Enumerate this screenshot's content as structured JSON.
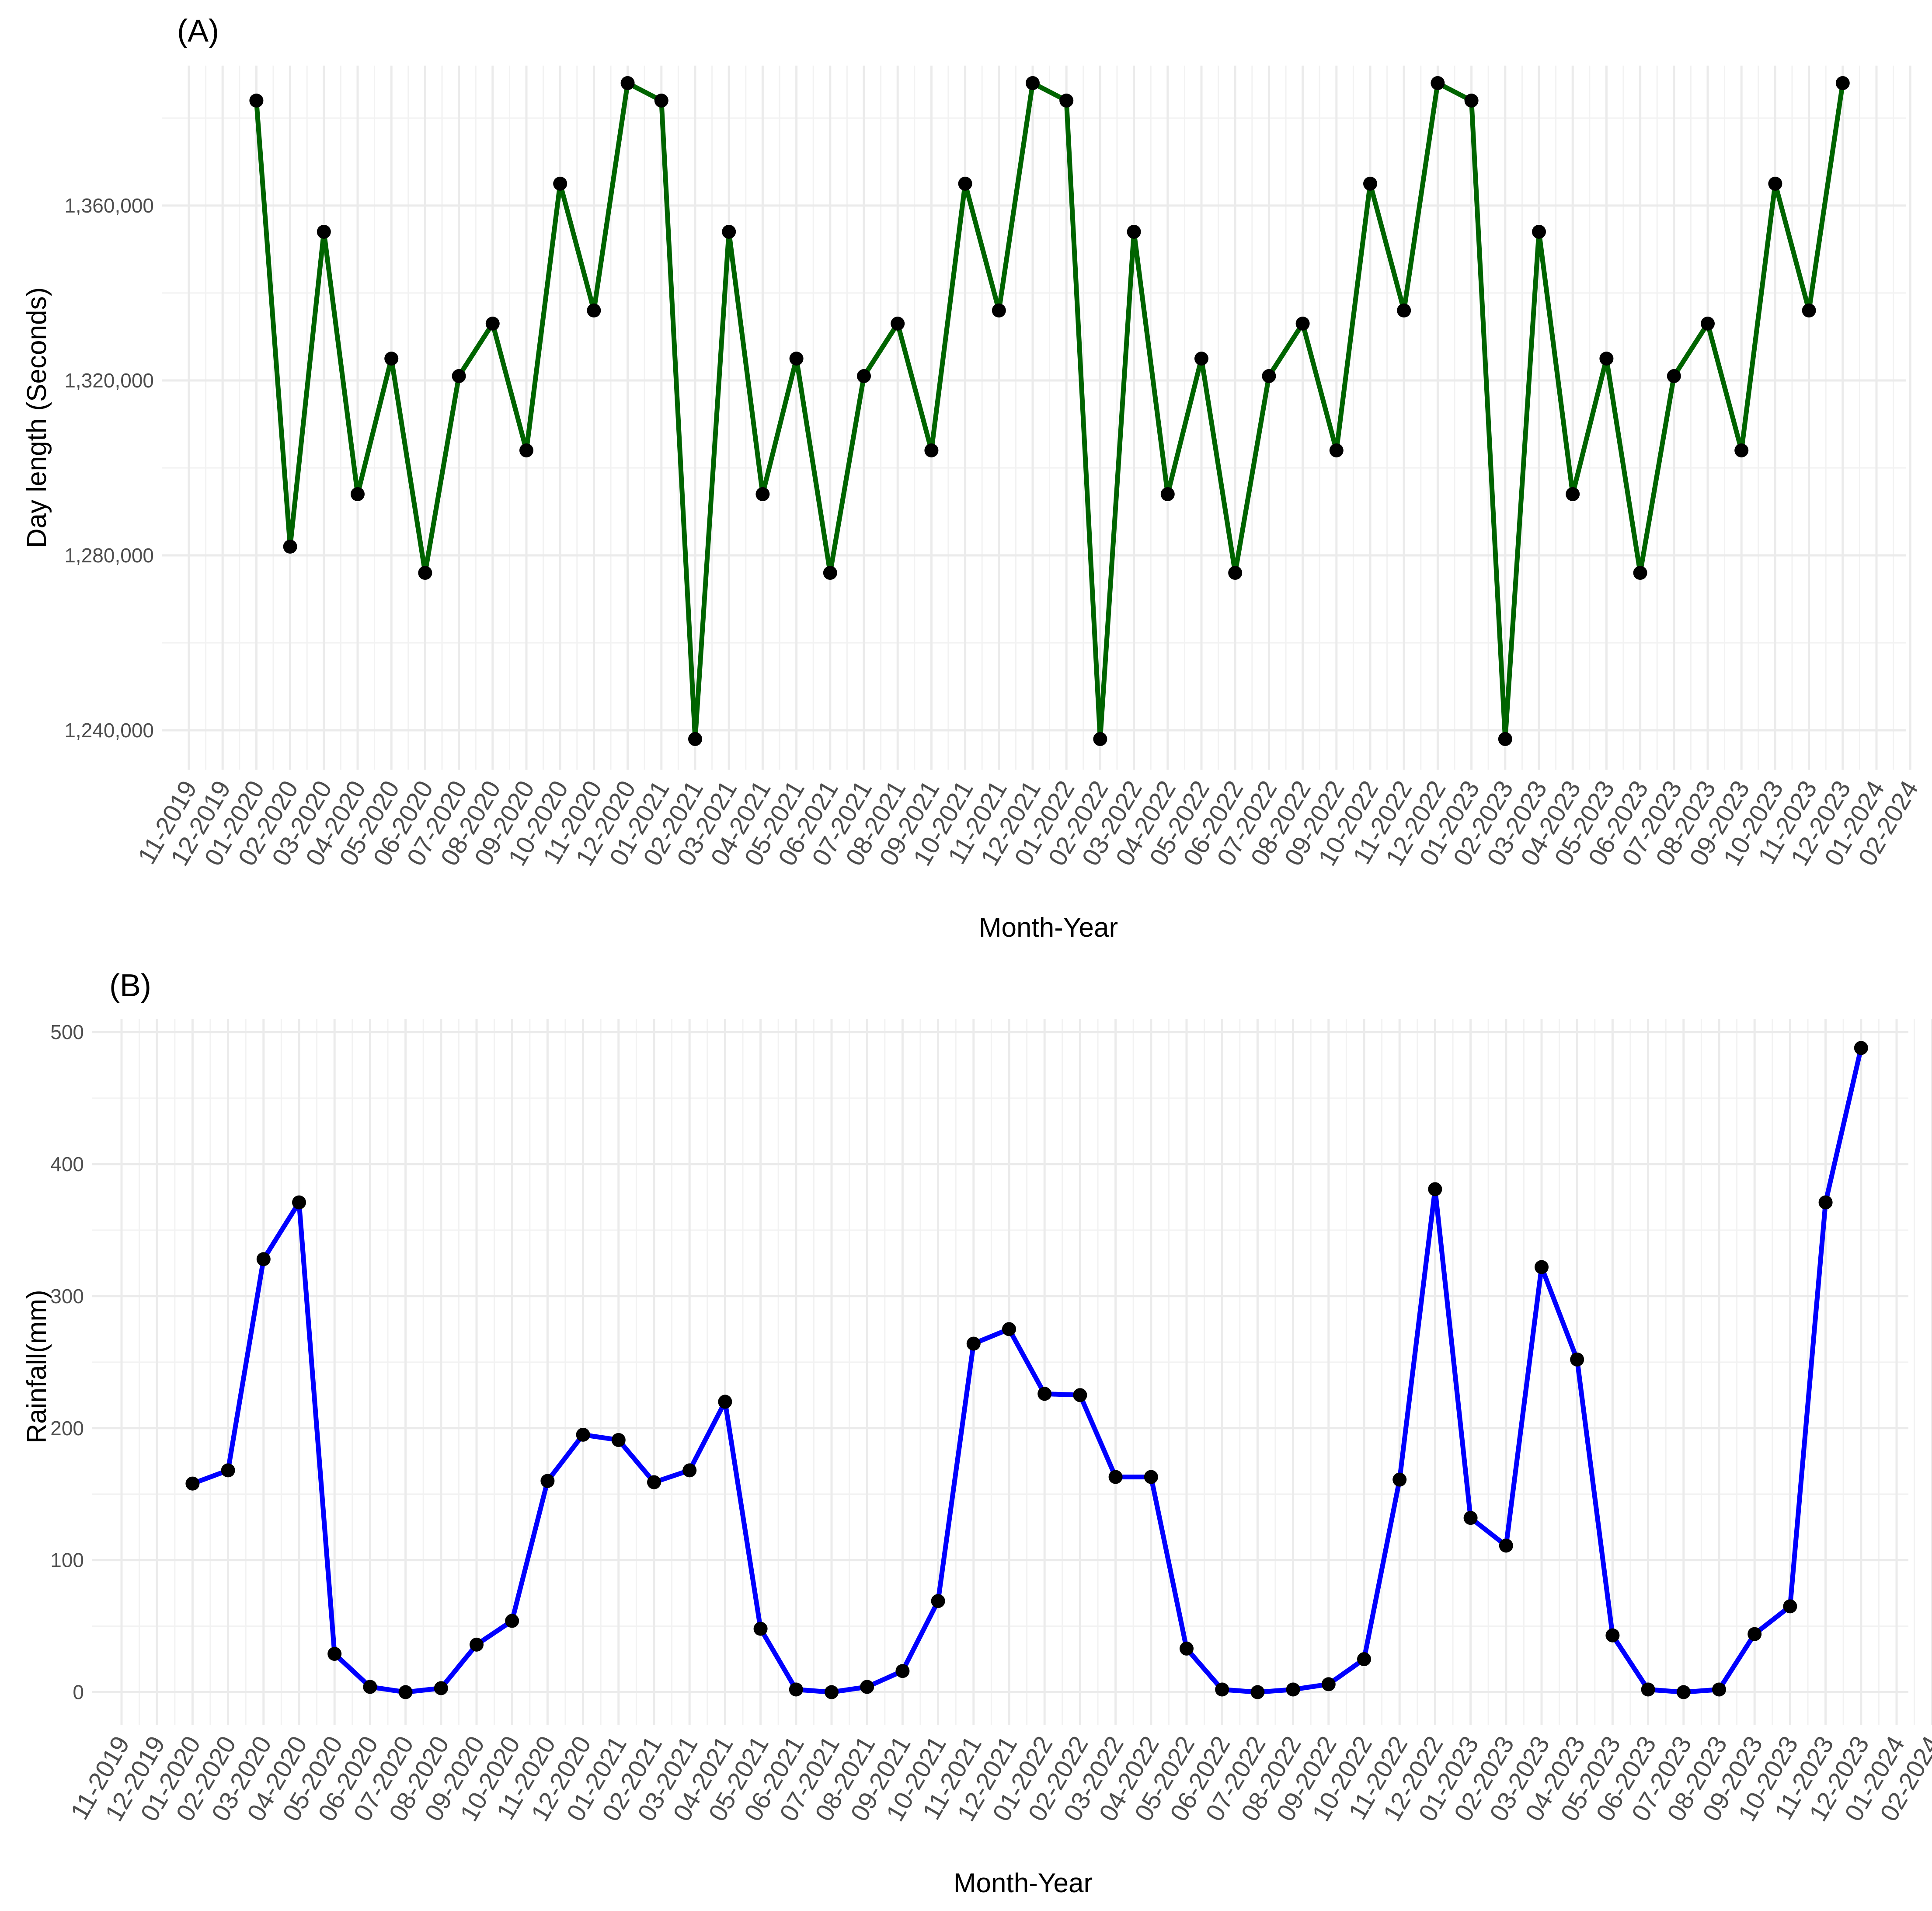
{
  "chart_data": [
    {
      "type": "line",
      "panel_label": "(A)",
      "title": "",
      "xlabel": "Month-Year",
      "ylabel": "Day length (Seconds)",
      "line_color": "#006400",
      "point_color": "#000000",
      "grid": true,
      "legend": "none",
      "x_ticks": [
        "11-2019",
        "12-2019",
        "01-2020",
        "02-2020",
        "03-2020",
        "04-2020",
        "05-2020",
        "06-2020",
        "07-2020",
        "08-2020",
        "09-2020",
        "10-2020",
        "11-2020",
        "12-2020",
        "01-2021",
        "02-2021",
        "03-2021",
        "04-2021",
        "05-2021",
        "06-2021",
        "07-2021",
        "08-2021",
        "09-2021",
        "10-2021",
        "11-2021",
        "12-2021",
        "01-2022",
        "02-2022",
        "03-2022",
        "04-2022",
        "05-2022",
        "06-2022",
        "07-2022",
        "08-2022",
        "09-2022",
        "10-2022",
        "11-2022",
        "12-2022",
        "01-2023",
        "02-2023",
        "03-2023",
        "04-2023",
        "05-2023",
        "06-2023",
        "07-2023",
        "08-2023",
        "09-2023",
        "10-2023",
        "11-2023",
        "12-2023",
        "01-2024",
        "02-2024"
      ],
      "y_ticks": [
        1240000,
        1280000,
        1320000,
        1360000
      ],
      "y_tick_labels": [
        "1,240,000",
        "1,280,000",
        "1,320,000",
        "1,360,000"
      ],
      "ylim": [
        1231000,
        1392000
      ],
      "x": [
        "01-2020",
        "02-2020",
        "03-2020",
        "04-2020",
        "05-2020",
        "06-2020",
        "07-2020",
        "08-2020",
        "09-2020",
        "10-2020",
        "11-2020",
        "12-2020",
        "01-2021",
        "02-2021",
        "03-2021",
        "04-2021",
        "05-2021",
        "06-2021",
        "07-2021",
        "08-2021",
        "09-2021",
        "10-2021",
        "11-2021",
        "12-2021",
        "01-2022",
        "02-2022",
        "03-2022",
        "04-2022",
        "05-2022",
        "06-2022",
        "07-2022",
        "08-2022",
        "09-2022",
        "10-2022",
        "11-2022",
        "12-2022",
        "01-2023",
        "02-2023",
        "03-2023",
        "04-2023",
        "05-2023",
        "06-2023",
        "07-2023",
        "08-2023",
        "09-2023",
        "10-2023",
        "11-2023",
        "12-2023"
      ],
      "values": [
        1384000,
        1282000,
        1354000,
        1294000,
        1325000,
        1276000,
        1321000,
        1333000,
        1304000,
        1365000,
        1336000,
        1388000,
        1384000,
        1238000,
        1354000,
        1294000,
        1325000,
        1276000,
        1321000,
        1333000,
        1304000,
        1365000,
        1336000,
        1388000,
        1384000,
        1238000,
        1354000,
        1294000,
        1325000,
        1276000,
        1321000,
        1333000,
        1304000,
        1365000,
        1336000,
        1388000,
        1384000,
        1238000,
        1354000,
        1294000,
        1325000,
        1276000,
        1321000,
        1333000,
        1304000,
        1365000,
        1336000,
        1388000
      ]
    },
    {
      "type": "line",
      "panel_label": "(B)",
      "title": "",
      "xlabel": "Month-Year",
      "ylabel": "Rainfall(mm)",
      "line_color": "#0000ff",
      "point_color": "#000000",
      "grid": true,
      "legend": "none",
      "x_ticks": [
        "11-2019",
        "12-2019",
        "01-2020",
        "02-2020",
        "03-2020",
        "04-2020",
        "05-2020",
        "06-2020",
        "07-2020",
        "08-2020",
        "09-2020",
        "10-2020",
        "11-2020",
        "12-2020",
        "01-2021",
        "02-2021",
        "03-2021",
        "04-2021",
        "05-2021",
        "06-2021",
        "07-2021",
        "08-2021",
        "09-2021",
        "10-2021",
        "11-2021",
        "12-2021",
        "01-2022",
        "02-2022",
        "03-2022",
        "04-2022",
        "05-2022",
        "06-2022",
        "07-2022",
        "08-2022",
        "09-2022",
        "10-2022",
        "11-2022",
        "12-2022",
        "01-2023",
        "02-2023",
        "03-2023",
        "04-2023",
        "05-2023",
        "06-2023",
        "07-2023",
        "08-2023",
        "09-2023",
        "10-2023",
        "11-2023",
        "12-2023",
        "01-2024",
        "02-2024"
      ],
      "y_ticks": [
        0,
        100,
        200,
        300,
        400,
        500
      ],
      "y_tick_labels": [
        "0",
        "100",
        "200",
        "300",
        "400",
        "500"
      ],
      "ylim": [
        -25,
        510
      ],
      "x": [
        "01-2020",
        "02-2020",
        "03-2020",
        "04-2020",
        "05-2020",
        "06-2020",
        "07-2020",
        "08-2020",
        "09-2020",
        "10-2020",
        "11-2020",
        "12-2020",
        "01-2021",
        "02-2021",
        "03-2021",
        "04-2021",
        "05-2021",
        "06-2021",
        "07-2021",
        "08-2021",
        "09-2021",
        "10-2021",
        "11-2021",
        "12-2021",
        "01-2022",
        "02-2022",
        "03-2022",
        "04-2022",
        "05-2022",
        "06-2022",
        "07-2022",
        "08-2022",
        "09-2022",
        "10-2022",
        "11-2022",
        "12-2022",
        "01-2023",
        "02-2023",
        "03-2023",
        "04-2023",
        "05-2023",
        "06-2023",
        "07-2023",
        "08-2023",
        "09-2023",
        "10-2023",
        "11-2023",
        "12-2023"
      ],
      "values": [
        158,
        168,
        328,
        371,
        29,
        4,
        0,
        3,
        36,
        54,
        160,
        195,
        191,
        159,
        168,
        220,
        48,
        2,
        0,
        4,
        16,
        69,
        264,
        275,
        226,
        225,
        163,
        163,
        33,
        2,
        0,
        2,
        6,
        25,
        161,
        381,
        132,
        111,
        322,
        252,
        43,
        2,
        0,
        2,
        44,
        65,
        371,
        488
      ]
    }
  ]
}
